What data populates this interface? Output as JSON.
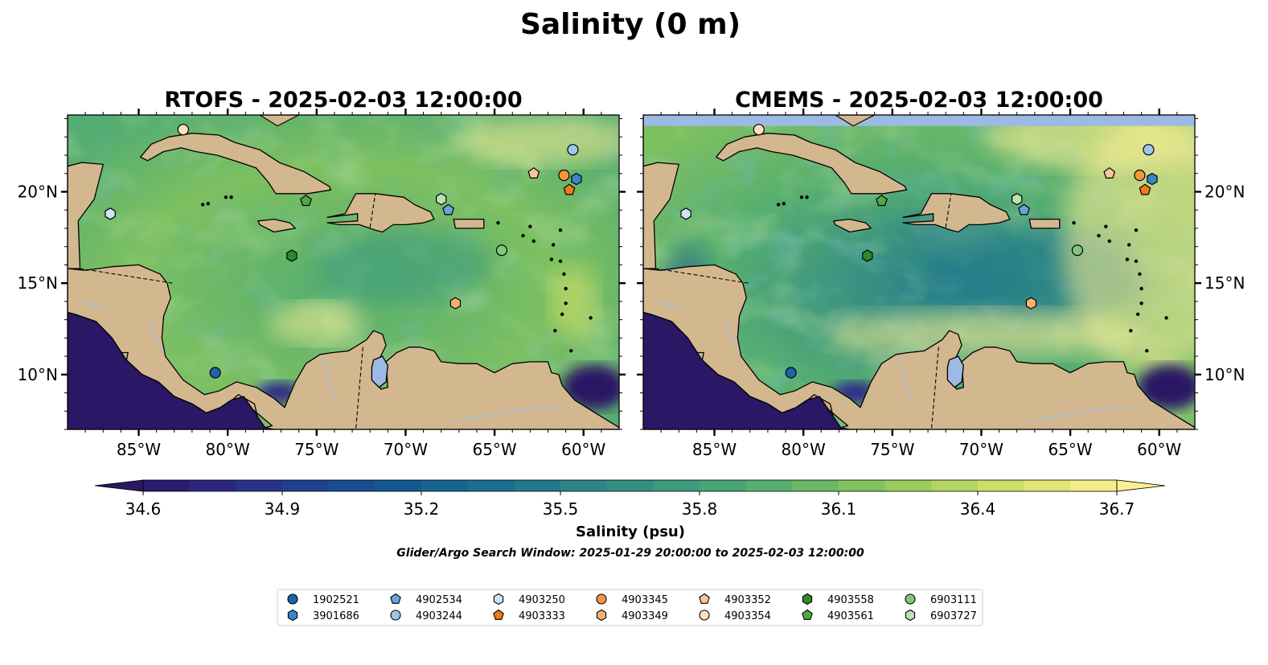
{
  "figure": {
    "suptitle": "Salinity (0 m)",
    "cbar_label": "Salinity (psu)",
    "search_window": "Glider/Argo Search Window: 2025-01-29 20:00:00 to 2025-02-03 12:00:00"
  },
  "extent": {
    "lon": [
      -89,
      -58
    ],
    "lat": [
      7,
      24.2
    ]
  },
  "xticks": [
    {
      "lon": -85,
      "label": "85°W"
    },
    {
      "lon": -80,
      "label": "80°W"
    },
    {
      "lon": -75,
      "label": "75°W"
    },
    {
      "lon": -70,
      "label": "70°W"
    },
    {
      "lon": -65,
      "label": "65°W"
    },
    {
      "lon": -60,
      "label": "60°W"
    }
  ],
  "yticks": [
    {
      "lat": 10,
      "label": "10°N"
    },
    {
      "lat": 15,
      "label": "15°N"
    },
    {
      "lat": 20,
      "label": "20°N"
    }
  ],
  "panels": [
    {
      "title": "RTOFS - 2025-02-03 12:00:00",
      "yaxis_side": "left",
      "model": "rtofs"
    },
    {
      "title": "CMEMS - 2025-02-03 12:00:00",
      "yaxis_side": "right",
      "model": "cmems"
    }
  ],
  "colorbar": {
    "range": [
      34.6,
      36.7
    ],
    "step": 0.1,
    "extend": "both",
    "ticks": [
      "34.6",
      "34.9",
      "35.2",
      "35.5",
      "35.8",
      "36.1",
      "36.4",
      "36.7"
    ],
    "colormap": [
      "#2a1765",
      "#2d2a85",
      "#1d4491",
      "#155b92",
      "#196f8f",
      "#2d8489",
      "#3b9a7d",
      "#55ad71",
      "#7dc060",
      "#aad35f",
      "#d9e36c",
      "#fdee94"
    ]
  },
  "colors": {
    "land": "#d3b78f",
    "pacific": "#2a1765",
    "lake": "#9dbae4",
    "river": "#a8bcd4",
    "cmems_nodata": "#9dbae4"
  },
  "floats": [
    {
      "id": "1902521",
      "marker": "circle",
      "color": "#1f63a8",
      "lon": -80.7,
      "lat": 10.1
    },
    {
      "id": "3901686",
      "marker": "hexagon",
      "color": "#3a84c8",
      "lon": -60.4,
      "lat": 20.7
    },
    {
      "id": "4902534",
      "marker": "pentagon",
      "color": "#6aa3dd",
      "lon": -67.6,
      "lat": 19.0
    },
    {
      "id": "4903244",
      "marker": "circle",
      "color": "#9cc6ea",
      "lon": -60.6,
      "lat": 22.3
    },
    {
      "id": "4903250",
      "marker": "hexagon",
      "color": "#cfe5f5",
      "lon": -86.6,
      "lat": 18.8
    },
    {
      "id": "4903333",
      "marker": "pentagon",
      "color": "#ee7a1a",
      "lon": -60.8,
      "lat": 20.1
    },
    {
      "id": "4903345",
      "marker": "circle",
      "color": "#f4973e",
      "lon": -61.1,
      "lat": 20.9
    },
    {
      "id": "4903349",
      "marker": "hexagon",
      "color": "#f7b06e",
      "lon": -67.2,
      "lat": 13.9
    },
    {
      "id": "4903352",
      "marker": "pentagon",
      "color": "#f9c59b",
      "lon": -62.8,
      "lat": 21.0
    },
    {
      "id": "4903354",
      "marker": "circle",
      "color": "#fde0c4",
      "lon": -82.5,
      "lat": 23.4
    },
    {
      "id": "4903558",
      "marker": "hexagon",
      "color": "#2d8a2d",
      "lon": -76.4,
      "lat": 16.5
    },
    {
      "id": "4903561",
      "marker": "pentagon",
      "color": "#53a744",
      "lon": -75.6,
      "lat": 19.5
    },
    {
      "id": "6903111",
      "marker": "circle",
      "color": "#7fc97a",
      "lon": -64.6,
      "lat": 16.8
    },
    {
      "id": "6903727",
      "marker": "hexagon",
      "color": "#b8e3b0",
      "lon": -68.0,
      "lat": 19.6
    }
  ]
}
